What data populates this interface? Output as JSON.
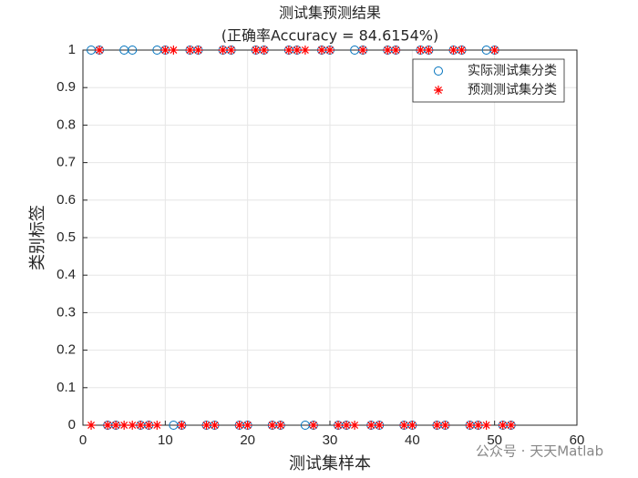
{
  "chart_data": {
    "type": "scatter",
    "title": "测试集预测结果",
    "subtitle": "(正确率Accuracy = 84.6154%)",
    "xlabel": "测试集样本",
    "ylabel": "类别标签",
    "x": [
      1,
      2,
      3,
      4,
      5,
      6,
      7,
      8,
      9,
      10,
      11,
      12,
      13,
      14,
      15,
      16,
      17,
      18,
      19,
      20,
      21,
      22,
      23,
      24,
      25,
      26,
      27,
      28,
      29,
      30,
      31,
      32,
      33,
      34,
      35,
      36,
      37,
      38,
      39,
      40,
      41,
      42,
      43,
      44,
      45,
      46,
      47,
      48,
      49,
      50,
      51,
      52
    ],
    "series": [
      {
        "name": "实际测试集分类",
        "color": "#0072BD",
        "marker": "o",
        "values": [
          1,
          1,
          0,
          0,
          1,
          1,
          0,
          0,
          1,
          1,
          0,
          0,
          1,
          1,
          0,
          0,
          1,
          1,
          0,
          0,
          1,
          1,
          0,
          0,
          1,
          1,
          0,
          0,
          1,
          1,
          0,
          0,
          1,
          1,
          0,
          0,
          1,
          1,
          0,
          0,
          1,
          1,
          0,
          0,
          1,
          1,
          0,
          0,
          1,
          1,
          0,
          0
        ]
      },
      {
        "name": "预测测试集分类",
        "color": "#FF0000",
        "marker": "*",
        "values": [
          0,
          1,
          0,
          0,
          0,
          0,
          0,
          0,
          0,
          1,
          1,
          0,
          1,
          1,
          0,
          0,
          1,
          1,
          0,
          0,
          1,
          1,
          0,
          0,
          1,
          1,
          1,
          0,
          1,
          1,
          0,
          0,
          0,
          1,
          0,
          0,
          1,
          1,
          0,
          0,
          1,
          1,
          0,
          0,
          1,
          1,
          0,
          0,
          0,
          1,
          0,
          0
        ]
      }
    ],
    "xlim": [
      0,
      60
    ],
    "xticks": [
      0,
      10,
      20,
      30,
      40,
      50,
      60
    ],
    "ylim": [
      0,
      1
    ],
    "yticks": [
      0,
      0.1,
      0.2,
      0.3,
      0.4,
      0.5,
      0.6,
      0.7,
      0.8,
      0.9,
      1
    ],
    "grid": true,
    "legend_position": "northeast",
    "watermark": "公众号 · 天天Matlab"
  }
}
